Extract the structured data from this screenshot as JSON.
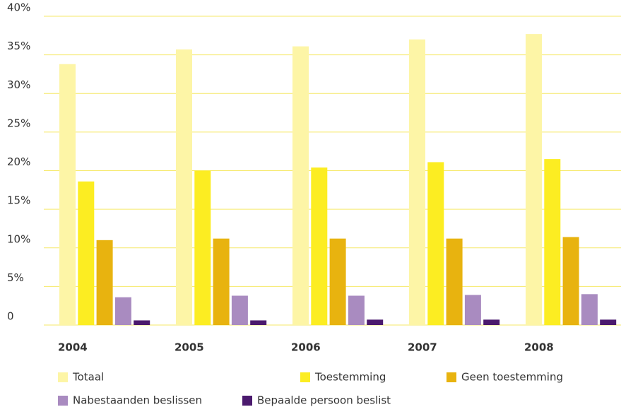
{
  "chart_data": {
    "type": "bar",
    "categories": [
      "2004",
      "2005",
      "2006",
      "2007",
      "2008"
    ],
    "series": [
      {
        "name": "Totaal",
        "color": "#fdf5a6",
        "values": [
          33.8,
          35.7,
          36.1,
          37.0,
          37.7
        ]
      },
      {
        "name": "Toestemming",
        "color": "#fced22",
        "values": [
          18.6,
          20.0,
          20.4,
          21.1,
          21.5
        ]
      },
      {
        "name": "Geen toestemming",
        "color": "#e8b30f",
        "values": [
          11.0,
          11.2,
          11.2,
          11.2,
          11.4
        ]
      },
      {
        "name": "Nabestaanden beslissen",
        "color": "#a98bc0",
        "values": [
          3.6,
          3.8,
          3.8,
          3.9,
          4.0
        ]
      },
      {
        "name": "Bepaalde persoon beslist",
        "color": "#4b1a6e",
        "values": [
          0.6,
          0.6,
          0.7,
          0.7,
          0.7
        ]
      }
    ],
    "ylim": [
      0,
      40
    ],
    "yticks": [
      0,
      {
        "value": 5,
        "label": "5%"
      },
      {
        "value": 10,
        "label": "10%"
      },
      {
        "value": 15,
        "label": "15%"
      },
      {
        "value": 20,
        "label": "20%"
      },
      {
        "value": 25,
        "label": "25%"
      },
      {
        "value": 30,
        "label": "30%"
      },
      {
        "value": 35,
        "label": "35%"
      },
      {
        "value": 40,
        "label": "40%"
      }
    ],
    "grid": true
  }
}
